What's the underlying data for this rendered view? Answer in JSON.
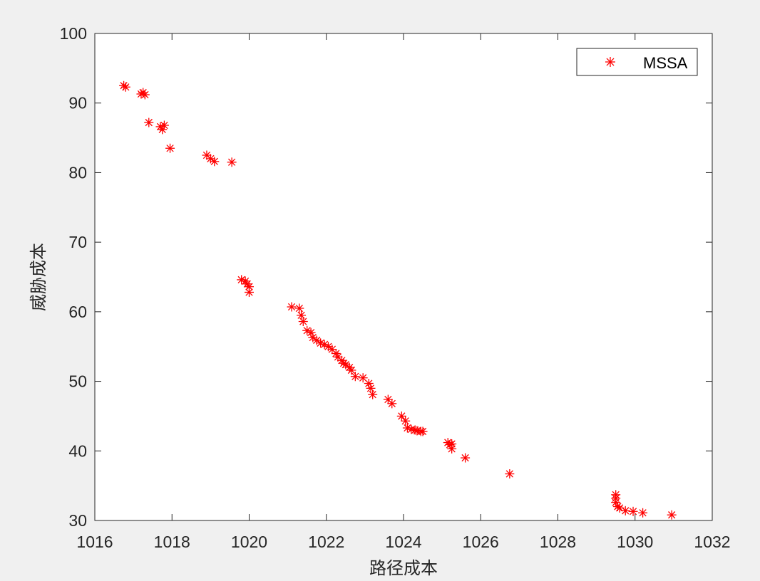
{
  "chart_data": {
    "type": "scatter",
    "xlabel": "路径成本",
    "ylabel": "威胁成本",
    "xlim": [
      1016,
      1032
    ],
    "ylim": [
      30,
      100
    ],
    "xticks": [
      1016,
      1018,
      1020,
      1022,
      1024,
      1026,
      1028,
      1030,
      1032
    ],
    "yticks": [
      30,
      40,
      50,
      60,
      70,
      80,
      90,
      100
    ],
    "grid": false,
    "legend_position": "top-right",
    "marker": "asterisk",
    "series": [
      {
        "name": "MSSA",
        "color": "#ff0000",
        "points": [
          [
            1016.75,
            92.5
          ],
          [
            1016.8,
            92.3
          ],
          [
            1017.2,
            91.3
          ],
          [
            1017.25,
            91.5
          ],
          [
            1017.3,
            91.2
          ],
          [
            1017.4,
            87.2
          ],
          [
            1017.7,
            86.6
          ],
          [
            1017.75,
            86.2
          ],
          [
            1017.8,
            86.8
          ],
          [
            1017.95,
            83.5
          ],
          [
            1018.9,
            82.5
          ],
          [
            1019.0,
            82.0
          ],
          [
            1019.1,
            81.6
          ],
          [
            1019.55,
            81.5
          ],
          [
            1019.8,
            64.6
          ],
          [
            1019.9,
            64.4
          ],
          [
            1019.95,
            64.0
          ],
          [
            1020.0,
            63.6
          ],
          [
            1020.0,
            62.8
          ],
          [
            1021.1,
            60.7
          ],
          [
            1021.3,
            60.5
          ],
          [
            1021.35,
            59.5
          ],
          [
            1021.4,
            58.6
          ],
          [
            1021.5,
            57.3
          ],
          [
            1021.6,
            57.0
          ],
          [
            1021.65,
            56.3
          ],
          [
            1021.75,
            55.9
          ],
          [
            1021.85,
            55.5
          ],
          [
            1021.95,
            55.3
          ],
          [
            1022.05,
            55.0
          ],
          [
            1022.15,
            54.6
          ],
          [
            1022.25,
            54.0
          ],
          [
            1022.3,
            53.5
          ],
          [
            1022.4,
            53.0
          ],
          [
            1022.45,
            52.6
          ],
          [
            1022.5,
            52.4
          ],
          [
            1022.6,
            52.0
          ],
          [
            1022.65,
            51.6
          ],
          [
            1022.75,
            50.7
          ],
          [
            1022.95,
            50.5
          ],
          [
            1023.1,
            49.7
          ],
          [
            1023.15,
            49.0
          ],
          [
            1023.2,
            48.1
          ],
          [
            1023.6,
            47.4
          ],
          [
            1023.7,
            46.8
          ],
          [
            1023.95,
            45.0
          ],
          [
            1024.05,
            44.3
          ],
          [
            1024.1,
            43.3
          ],
          [
            1024.2,
            43.1
          ],
          [
            1024.3,
            43.0
          ],
          [
            1024.35,
            42.9
          ],
          [
            1024.45,
            42.8
          ],
          [
            1024.5,
            42.8
          ],
          [
            1025.15,
            41.2
          ],
          [
            1025.2,
            40.9
          ],
          [
            1025.25,
            40.3
          ],
          [
            1025.25,
            41.0
          ],
          [
            1025.6,
            39.0
          ],
          [
            1026.75,
            36.7
          ],
          [
            1029.5,
            33.7
          ],
          [
            1029.5,
            33.2
          ],
          [
            1029.5,
            32.6
          ],
          [
            1029.55,
            32.0
          ],
          [
            1029.6,
            31.8
          ],
          [
            1029.75,
            31.4
          ],
          [
            1029.95,
            31.3
          ],
          [
            1030.2,
            31.1
          ],
          [
            1030.95,
            30.8
          ]
        ]
      }
    ]
  }
}
